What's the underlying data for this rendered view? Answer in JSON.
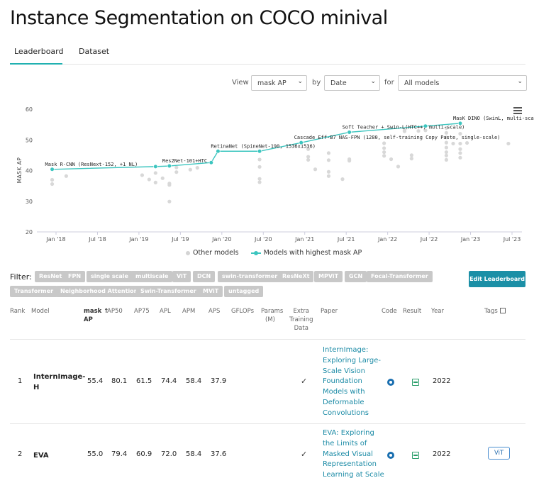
{
  "page": {
    "title": "Instance Segmentation on COCO minival"
  },
  "tabs": [
    {
      "label": "Leaderboard"
    },
    {
      "label": "Dataset"
    }
  ],
  "controls": {
    "view_label": "View",
    "by_label": "by",
    "for_label": "for",
    "metric_value": "mask AP",
    "xaxis_value": "Date",
    "models_value": "All models"
  },
  "chart_data": {
    "type": "scatter",
    "ylabel": "MASK AP",
    "ylim": [
      20,
      60
    ],
    "yticks": [
      "60",
      "50",
      "40",
      "30",
      "20"
    ],
    "xticks": [
      "Jan '18",
      "Jul '18",
      "Jan '19",
      "Jul '19",
      "Jan '20",
      "Jul '20",
      "Jan '21",
      "Jul '21",
      "Jan '22",
      "Jul '22",
      "Jan '23",
      "Jul '23"
    ],
    "series": [
      {
        "name": "Models with highest mask AP",
        "color": "#3cc5bf",
        "points": [
          {
            "x": "2017-12",
            "y": 40.4,
            "label": "Mask R-CNN (ResNext-152, +1 NL)"
          },
          {
            "x": "2019-03",
            "y": 41.3,
            "label": ""
          },
          {
            "x": "2019-05",
            "y": 41.5,
            "label": "Res2Net-101+HTC"
          },
          {
            "x": "2019-11",
            "y": 42.6,
            "label": ""
          },
          {
            "x": "2019-12",
            "y": 46.3,
            "label": "RetinaNet (SpineNet-190, 1536x1536)"
          },
          {
            "x": "2020-06",
            "y": 46.3,
            "label": ""
          },
          {
            "x": "2020-12",
            "y": 49.1,
            "label": "Cascade Eff-B7 NAS-FPN (1280, self-training Copy Paste, single-scale)"
          },
          {
            "x": "2021-07",
            "y": 52.5,
            "label": "Soft Teacher + Swin-L(HTC++, multi-scale)"
          },
          {
            "x": "2022-06",
            "y": 54.5,
            "label": ""
          },
          {
            "x": "2022-11",
            "y": 55.4,
            "label": "MasK DINO (SwinL, multi-scale)"
          }
        ]
      },
      {
        "name": "Other models",
        "color": "#d8d8d8",
        "points": [
          {
            "x": "2017-12",
            "y": 37.0
          },
          {
            "x": "2017-12",
            "y": 35.6
          },
          {
            "x": "2018-02",
            "y": 38.2
          },
          {
            "x": "2019-01",
            "y": 38.5
          },
          {
            "x": "2019-02",
            "y": 37.1
          },
          {
            "x": "2019-03",
            "y": 39.2
          },
          {
            "x": "2019-03",
            "y": 36.1
          },
          {
            "x": "2019-04",
            "y": 37.5
          },
          {
            "x": "2019-05",
            "y": 35.3
          },
          {
            "x": "2019-05",
            "y": 29.9
          },
          {
            "x": "2019-05",
            "y": 35.8
          },
          {
            "x": "2019-06",
            "y": 39.5
          },
          {
            "x": "2019-06",
            "y": 41.0
          },
          {
            "x": "2019-08",
            "y": 40.3
          },
          {
            "x": "2019-09",
            "y": 40.9
          },
          {
            "x": "2020-06",
            "y": 43.6
          },
          {
            "x": "2020-06",
            "y": 41.2
          },
          {
            "x": "2020-06",
            "y": 37.3
          },
          {
            "x": "2020-06",
            "y": 36.2
          },
          {
            "x": "2021-01",
            "y": 47.0
          },
          {
            "x": "2021-01",
            "y": 44.5
          },
          {
            "x": "2021-01",
            "y": 43.5
          },
          {
            "x": "2021-02",
            "y": 40.4
          },
          {
            "x": "2021-04",
            "y": 45.7
          },
          {
            "x": "2021-04",
            "y": 43.4
          },
          {
            "x": "2021-04",
            "y": 39.6
          },
          {
            "x": "2021-04",
            "y": 38.2
          },
          {
            "x": "2021-06",
            "y": 37.2
          },
          {
            "x": "2021-07",
            "y": 43.7
          },
          {
            "x": "2021-07",
            "y": 43.2
          },
          {
            "x": "2021-12",
            "y": 48.9
          },
          {
            "x": "2021-12",
            "y": 47.3
          },
          {
            "x": "2021-12",
            "y": 46.0
          },
          {
            "x": "2021-12",
            "y": 44.8
          },
          {
            "x": "2022-01",
            "y": 43.7
          },
          {
            "x": "2022-02",
            "y": 41.3
          },
          {
            "x": "2022-03",
            "y": 53.1
          },
          {
            "x": "2022-03",
            "y": 52.8
          },
          {
            "x": "2022-04",
            "y": 45.0
          },
          {
            "x": "2022-04",
            "y": 43.9
          },
          {
            "x": "2022-05",
            "y": 52.9
          },
          {
            "x": "2022-06",
            "y": 53.1
          },
          {
            "x": "2022-09",
            "y": 53.9
          },
          {
            "x": "2022-09",
            "y": 52.3
          },
          {
            "x": "2022-09",
            "y": 50.8
          },
          {
            "x": "2022-09",
            "y": 49.1
          },
          {
            "x": "2022-09",
            "y": 47.5
          },
          {
            "x": "2022-09",
            "y": 46.0
          },
          {
            "x": "2022-09",
            "y": 44.9
          },
          {
            "x": "2022-09",
            "y": 43.5
          },
          {
            "x": "2022-10",
            "y": 48.8
          },
          {
            "x": "2022-11",
            "y": 52.0
          },
          {
            "x": "2022-11",
            "y": 48.8
          },
          {
            "x": "2022-11",
            "y": 47.0
          },
          {
            "x": "2022-11",
            "y": 45.7
          },
          {
            "x": "2022-11",
            "y": 44.2
          },
          {
            "x": "2022-12",
            "y": 49.0
          },
          {
            "x": "2023-06",
            "y": 48.8
          }
        ]
      }
    ],
    "legend": [
      "Other models",
      "Models with highest mask AP"
    ]
  },
  "filter": {
    "label": "Filter:",
    "chips": [
      "ResNet",
      "FPN",
      "single scale",
      "multiscale",
      "ViT",
      "DCN",
      "swin-transformer",
      "ResNeXt",
      "MPViT",
      "GCN",
      "Focal-Transformer",
      "Transformer",
      "Neighborhood Attention",
      "Swin-Transformer",
      "MViT",
      "untagged"
    ],
    "edit_button": "Edit Leaderboard"
  },
  "table": {
    "headers": {
      "rank": "Rank",
      "model": "Model",
      "mask_ap": "mask ↑",
      "mask_ap2": "AP",
      "ap50": "AP50",
      "ap75": "AP75",
      "apl": "APL",
      "apm": "APM",
      "aps": "APS",
      "gflops": "GFLOPs",
      "params": "Params",
      "params2": "(M)",
      "extra": "Extra",
      "extra2": "Training",
      "extra3": "Data",
      "paper": "Paper",
      "code": "Code",
      "result": "Result",
      "year": "Year",
      "tags": "Tags"
    },
    "rows": [
      {
        "rank": "1",
        "model_line1": "InternImage-",
        "model_line2": "H",
        "mask_ap": "55.4",
        "ap50": "80.1",
        "ap75": "61.5",
        "apl": "74.4",
        "apm": "58.4",
        "aps": "37.9",
        "extra": "✓",
        "paper": [
          "InternImage:",
          "Exploring Large-",
          "Scale Vision",
          "Foundation",
          "Models with",
          "Deformable",
          "Convolutions"
        ],
        "year": "2022",
        "tag": ""
      },
      {
        "rank": "2",
        "model_line1": "EVA",
        "model_line2": "",
        "mask_ap": "55.0",
        "ap50": "79.4",
        "ap75": "60.9",
        "apl": "72.0",
        "apm": "58.4",
        "aps": "37.6",
        "extra": "✓",
        "paper": [
          "EVA: Exploring",
          "the Limits of",
          "Masked Visual",
          "Representation",
          "Learning at Scale"
        ],
        "year": "2022",
        "tag": "ViT"
      }
    ]
  }
}
